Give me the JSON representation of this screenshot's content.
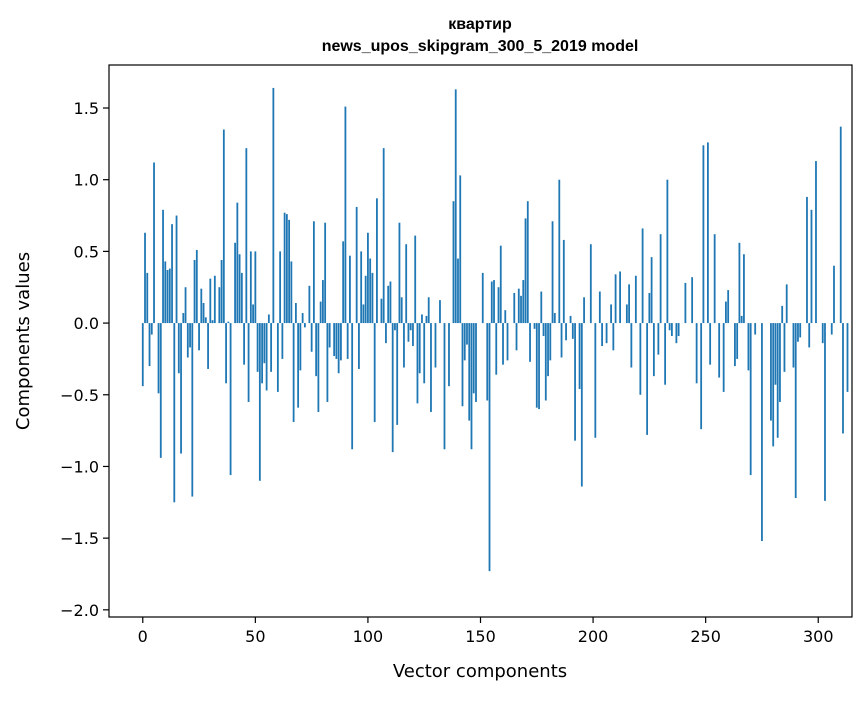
{
  "chart_data": {
    "type": "bar",
    "title_line1": "квартир",
    "title_line2": "news_upos_skipgram_300_5_2019 model",
    "xlabel": "Vector components",
    "ylabel": "Components values",
    "xlim": [
      -15,
      315
    ],
    "ylim": [
      -2.05,
      1.8
    ],
    "xticks": [
      0,
      50,
      100,
      150,
      200,
      250,
      300
    ],
    "xtick_labels": [
      "0",
      "50",
      "100",
      "150",
      "200",
      "250",
      "300"
    ],
    "yticks": [
      -2.0,
      -1.5,
      -1.0,
      -0.5,
      0.0,
      0.5,
      1.0,
      1.5
    ],
    "ytick_labels": [
      "−2.0",
      "−1.5",
      "−1.0",
      "−0.5",
      "0.0",
      "0.5",
      "1.0",
      "1.5"
    ],
    "bar_color": "#1f77b4",
    "grid": false,
    "values": [
      -0.44,
      0.63,
      0.35,
      -0.3,
      -0.08,
      1.12,
      0.0,
      -0.49,
      -0.94,
      0.79,
      0.43,
      0.37,
      0.38,
      0.69,
      -1.25,
      0.75,
      -0.35,
      -0.91,
      0.07,
      0.25,
      -0.24,
      -0.17,
      -1.21,
      0.44,
      0.51,
      -0.19,
      0.24,
      0.14,
      0.04,
      -0.32,
      0.31,
      0.02,
      0.33,
      0.0,
      0.25,
      0.44,
      1.35,
      -0.42,
      0.01,
      -1.06,
      0.0,
      0.56,
      0.84,
      0.48,
      0.35,
      -0.29,
      1.22,
      -0.55,
      0.5,
      0.13,
      0.5,
      -0.34,
      -1.1,
      -0.42,
      -0.28,
      -0.47,
      0.06,
      -0.34,
      1.64,
      0.0,
      -0.48,
      0.5,
      -0.25,
      0.77,
      0.76,
      0.72,
      0.43,
      -0.69,
      0.14,
      -0.59,
      -0.33,
      0.07,
      -0.03,
      0.0,
      0.26,
      -0.2,
      0.71,
      -0.37,
      -0.62,
      0.15,
      0.3,
      0.7,
      -0.55,
      -0.17,
      0.0,
      -0.23,
      -0.25,
      -0.35,
      -0.26,
      0.57,
      1.51,
      -0.25,
      0.47,
      -0.88,
      0.0,
      0.81,
      -0.32,
      0.5,
      0.13,
      0.33,
      0.63,
      0.45,
      0.35,
      -0.69,
      0.87,
      0.0,
      0.17,
      1.22,
      -0.14,
      0.26,
      0.29,
      -0.9,
      -0.05,
      -0.71,
      0.7,
      0.18,
      -0.31,
      0.55,
      -0.13,
      -0.05,
      -0.16,
      0.61,
      -0.56,
      -0.35,
      0.06,
      -0.42,
      0.05,
      0.18,
      -0.62,
      0.0,
      -0.31,
      0.0,
      0.16,
      0.0,
      -0.88,
      0.0,
      -0.44,
      0.0,
      0.85,
      1.63,
      0.45,
      1.03,
      -0.58,
      -0.26,
      -0.15,
      -0.68,
      -0.88,
      -0.49,
      -0.55,
      0.0,
      0.0,
      0.35,
      0.0,
      -0.54,
      -1.73,
      0.29,
      0.3,
      -0.36,
      0.25,
      0.54,
      -0.29,
      0.09,
      -0.26,
      0.0,
      0.0,
      0.21,
      -0.19,
      0.24,
      0.19,
      0.3,
      0.73,
      0.85,
      -0.27,
      0.0,
      -0.04,
      -0.59,
      -0.6,
      0.22,
      -0.09,
      -0.54,
      -0.37,
      -0.26,
      0.71,
      0.07,
      0.0,
      1.0,
      -0.24,
      0.58,
      -0.12,
      0.0,
      0.05,
      -0.11,
      -0.82,
      0.0,
      -0.46,
      -1.14,
      0.18,
      0.0,
      0.0,
      0.55,
      0.0,
      -0.8,
      0.0,
      0.22,
      -0.16,
      0.0,
      -0.14,
      0.0,
      0.13,
      -0.19,
      0.34,
      0.0,
      0.36,
      0.0,
      0.0,
      0.13,
      0.27,
      -0.31,
      0.0,
      0.33,
      0.0,
      -0.5,
      0.66,
      0.0,
      -0.78,
      0.21,
      0.46,
      -0.37,
      0.0,
      -0.22,
      0.62,
      0.0,
      -0.43,
      1.0,
      -0.05,
      -0.09,
      0.0,
      -0.14,
      -0.09,
      0.0,
      0.0,
      0.28,
      0.0,
      0.0,
      0.32,
      0.0,
      -0.42,
      0.0,
      -0.74,
      1.24,
      0.0,
      1.26,
      -0.29,
      0.0,
      0.62,
      0.0,
      -0.38,
      0.0,
      -0.48,
      0.15,
      0.23,
      0.0,
      0.0,
      -0.3,
      -0.25,
      0.56,
      0.05,
      0.48,
      0.0,
      -0.33,
      -1.06,
      0.0,
      -0.08,
      0.0,
      0.0,
      -1.52,
      0.0,
      0.0,
      0.0,
      -0.68,
      -0.86,
      -0.43,
      -0.8,
      -0.55,
      0.12,
      -0.34,
      0.27,
      0.0,
      0.0,
      -0.31,
      -1.22,
      -0.13,
      -0.1,
      0.0,
      0.0,
      0.88,
      -0.17,
      0.79,
      0.0,
      1.13,
      0.0,
      0.0,
      -0.14,
      -1.24,
      0.0,
      0.0,
      -0.08,
      0.4,
      0.0,
      0.0,
      1.37,
      -0.77,
      0.0,
      -0.48,
      0.0,
      0.0,
      0.0,
      0.0,
      0.0
    ]
  }
}
